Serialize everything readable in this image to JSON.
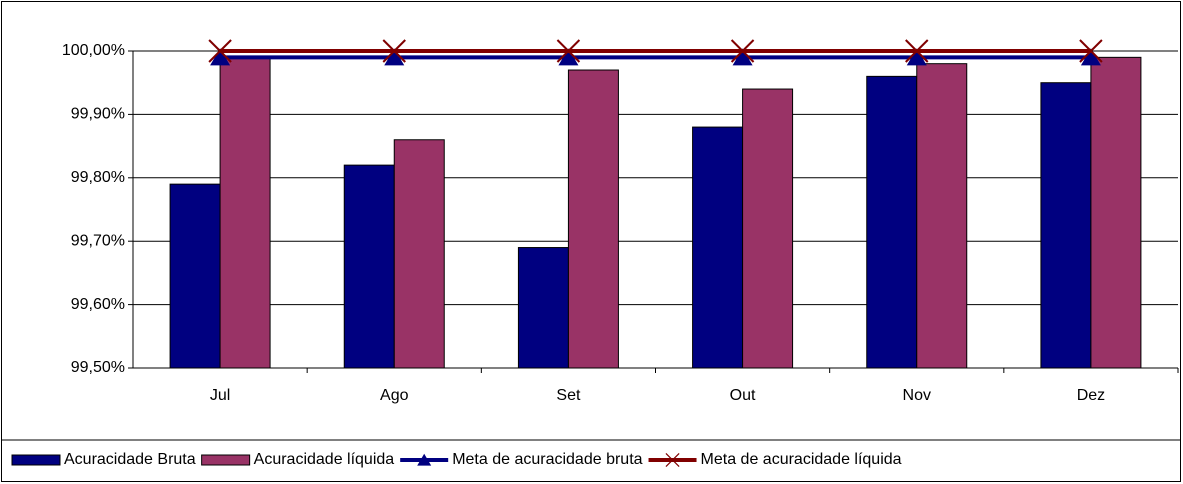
{
  "chart_data": {
    "type": "bar",
    "categories": [
      "Jul",
      "Ago",
      "Set",
      "Out",
      "Nov",
      "Dez"
    ],
    "series": [
      {
        "name": "Acuracidade Bruta",
        "type": "bar",
        "color": "#000080",
        "values": [
          99.79,
          99.82,
          99.69,
          99.88,
          99.96,
          99.95
        ]
      },
      {
        "name": "Acuracidade líquida",
        "type": "bar",
        "color": "#993366",
        "values": [
          99.99,
          99.86,
          99.97,
          99.94,
          99.98,
          99.99
        ]
      },
      {
        "name": "Meta de acuracidade bruta",
        "type": "line",
        "marker": "triangle",
        "color": "#000080",
        "values": [
          99.99,
          99.99,
          99.99,
          99.99,
          99.99,
          99.99
        ]
      },
      {
        "name": "Meta de acuracidade líquida",
        "type": "line",
        "marker": "x",
        "color": "#800000",
        "values": [
          100,
          100,
          100,
          100,
          100,
          100
        ]
      }
    ],
    "ylim": [
      99.5,
      100
    ],
    "yticks": [
      {
        "value": 99.5,
        "label": "99,50%"
      },
      {
        "value": 99.6,
        "label": "99,60%"
      },
      {
        "value": 99.7,
        "label": "99,70%"
      },
      {
        "value": 99.8,
        "label": "99,80%"
      },
      {
        "value": 99.9,
        "label": "99,90%"
      },
      {
        "value": 100,
        "label": "100,00%"
      }
    ],
    "grid": true,
    "legend": "bottom"
  }
}
